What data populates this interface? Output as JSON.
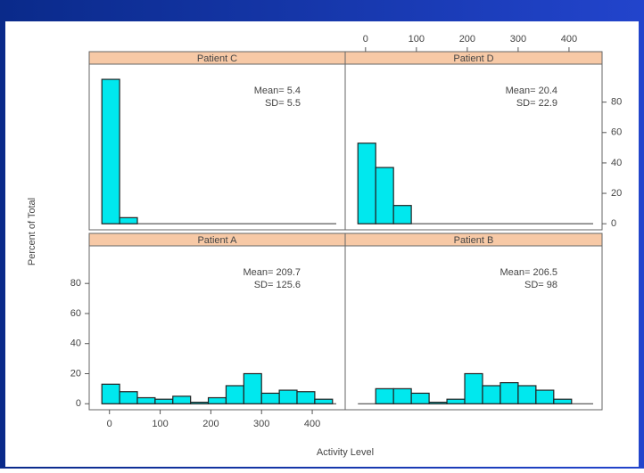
{
  "chart_data": [
    {
      "type": "histogram",
      "title": "Patient C",
      "annotations": [
        "Mean= 5.4",
        "SD= 5.5"
      ],
      "bins": [
        -15,
        20,
        55
      ],
      "values": [
        95,
        4
      ],
      "color": "#00e8ee",
      "xlim": [
        -40,
        465
      ],
      "ylim": [
        -4,
        105
      ]
    },
    {
      "type": "histogram",
      "title": "Patient D",
      "annotations": [
        "Mean= 20.4",
        "SD= 22.9"
      ],
      "bins": [
        -15,
        20,
        55,
        90
      ],
      "values": [
        53,
        37,
        12
      ],
      "color": "#00e8ee",
      "xlim": [
        -40,
        465
      ],
      "ylim": [
        -4,
        105
      ],
      "xticks": [
        0,
        100,
        200,
        300,
        400
      ],
      "xaxis_side": "top",
      "yticks": [
        0,
        20,
        40,
        60,
        80
      ],
      "yaxis_side": "right"
    },
    {
      "type": "histogram",
      "title": "Patient A",
      "annotations": [
        "Mean= 209.7",
        "SD= 125.6"
      ],
      "bins": [
        -15,
        20,
        55,
        90,
        125,
        160,
        195,
        230,
        265,
        300,
        335,
        370,
        405,
        440
      ],
      "values": [
        13,
        8,
        4,
        3,
        5,
        1,
        4,
        12,
        20,
        7,
        9,
        8,
        3
      ],
      "color": "#00e8ee",
      "xlim": [
        -40,
        465
      ],
      "ylim": [
        -4,
        105
      ],
      "xticks": [
        0,
        100,
        200,
        300,
        400
      ],
      "xaxis_side": "bottom",
      "yticks": [
        0,
        20,
        40,
        60,
        80
      ],
      "yaxis_side": "left",
      "xlabel": "Activity Level",
      "ylabel": "Percent of Total"
    },
    {
      "type": "histogram",
      "title": "Patient B",
      "annotations": [
        "Mean= 206.5",
        "SD= 98"
      ],
      "bins": [
        -15,
        20,
        55,
        90,
        125,
        160,
        195,
        230,
        265,
        300,
        335,
        370,
        405,
        440
      ],
      "values": [
        0,
        10,
        10,
        7,
        1,
        3,
        20,
        12,
        14,
        12,
        9,
        3,
        0
      ],
      "color": "#00e8ee",
      "xlim": [
        -40,
        465
      ],
      "ylim": [
        -4,
        105
      ]
    }
  ]
}
